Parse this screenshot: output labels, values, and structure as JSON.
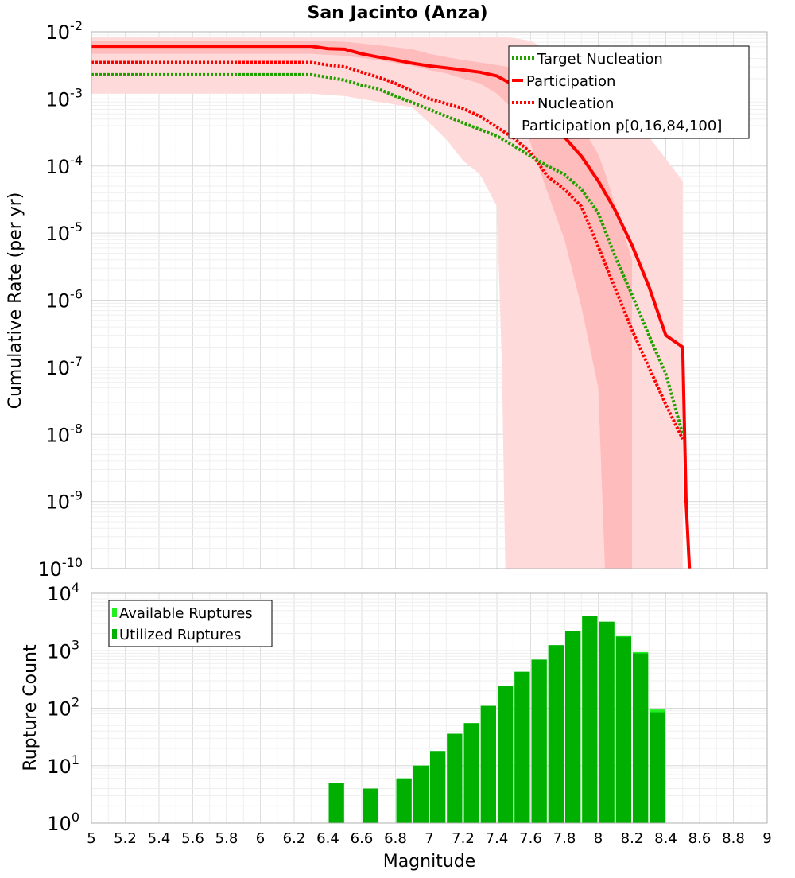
{
  "title": "San Jacinto (Anza)",
  "colors": {
    "participation": "#ff0000",
    "nucleation": "#ff0000",
    "target": "#22a000",
    "band_outer": "#ffdada",
    "band_inner": "#ffbcbc",
    "bar_available": "#22ee22",
    "bar_utilized": "#00b000"
  },
  "chart_data": [
    {
      "type": "line",
      "title": "San Jacinto (Anza)",
      "xlabel": "",
      "ylabel": "Cumulative Rate (per yr)",
      "xlim": [
        5,
        9
      ],
      "ylim": [
        1e-10,
        0.01
      ],
      "y_scale": "log",
      "grid": true,
      "legend_position": "top-right",
      "x_ticks": [
        "5",
        "5.2",
        "5.4",
        "5.6",
        "5.8",
        "6",
        "6.2",
        "6.4",
        "6.6",
        "6.8",
        "7",
        "7.2",
        "7.4",
        "7.6",
        "7.8",
        "8",
        "8.2",
        "8.4",
        "8.6",
        "8.8",
        "9"
      ],
      "y_ticks": [
        {
          "base": "10",
          "exp": "-10"
        },
        {
          "base": "10",
          "exp": "-9"
        },
        {
          "base": "10",
          "exp": "-8"
        },
        {
          "base": "10",
          "exp": "-7"
        },
        {
          "base": "10",
          "exp": "-6"
        },
        {
          "base": "10",
          "exp": "-5"
        },
        {
          "base": "10",
          "exp": "-4"
        },
        {
          "base": "10",
          "exp": "-3"
        },
        {
          "base": "10",
          "exp": "-2"
        }
      ],
      "series": [
        {
          "name": "Target Nucleation",
          "style": "dotted",
          "color": "#22a000",
          "x": [
            5.0,
            6.3,
            6.4,
            6.5,
            6.6,
            6.7,
            6.8,
            6.9,
            7.0,
            7.1,
            7.2,
            7.3,
            7.4,
            7.5,
            7.6,
            7.7,
            7.8,
            7.9,
            8.0,
            8.1,
            8.2,
            8.3,
            8.4,
            8.5
          ],
          "y": [
            0.0023,
            0.0023,
            0.0021,
            0.0019,
            0.0016,
            0.0014,
            0.0011,
            0.00088,
            0.0007,
            0.00055,
            0.00044,
            0.00035,
            0.00028,
            0.0002,
            0.00014,
            0.0001,
            7.5e-05,
            4.5e-05,
            2e-05,
            4.5e-06,
            1.2e-06,
            3e-07,
            8e-08,
            1e-08
          ]
        },
        {
          "name": "Participation",
          "style": "solid",
          "color": "#ff0000",
          "x": [
            5.0,
            6.3,
            6.4,
            6.5,
            6.6,
            6.7,
            6.8,
            6.9,
            7.0,
            7.1,
            7.2,
            7.3,
            7.4,
            7.5,
            7.6,
            7.7,
            7.8,
            7.9,
            8.0,
            8.1,
            8.2,
            8.3,
            8.4,
            8.5,
            8.52,
            8.54
          ],
          "y": [
            0.0061,
            0.0061,
            0.0056,
            0.0055,
            0.0047,
            0.0042,
            0.0038,
            0.0034,
            0.0031,
            0.0029,
            0.0027,
            0.0025,
            0.0022,
            0.0016,
            0.00092,
            0.0005,
            0.00027,
            0.00014,
            6e-05,
            2.2e-05,
            6.6e-06,
            1.6e-06,
            3e-07,
            2e-07,
            1e-09,
            1e-10
          ]
        },
        {
          "name": "Nucleation",
          "style": "dotted",
          "color": "#ff0000",
          "x": [
            5.0,
            6.3,
            6.4,
            6.5,
            6.6,
            6.7,
            6.8,
            6.9,
            7.0,
            7.1,
            7.2,
            7.3,
            7.4,
            7.5,
            7.6,
            7.7,
            7.8,
            7.9,
            8.0,
            8.1,
            8.2,
            8.3,
            8.4,
            8.5
          ],
          "y": [
            0.0035,
            0.0035,
            0.0032,
            0.003,
            0.0025,
            0.0021,
            0.0017,
            0.0013,
            0.001,
            0.00085,
            0.00072,
            0.00055,
            0.00038,
            0.00026,
            0.00016,
            7e-05,
            4.5e-05,
            2.5e-05,
            6.3e-06,
            1.5e-06,
            3.6e-07,
            1e-07,
            2.8e-08,
            8.5e-09
          ]
        }
      ],
      "bands": [
        {
          "name": "Participation p[0,16,84,100]",
          "range": "p0-p100",
          "x": [
            5.0,
            6.3,
            6.5,
            6.7,
            6.9,
            7.0,
            7.1,
            7.2,
            7.3,
            7.4,
            7.43,
            7.45,
            7.6,
            7.8,
            8.0,
            8.2,
            8.25,
            8.5
          ],
          "low": [
            0.0012,
            0.0012,
            0.0011,
            0.0009,
            0.00075,
            0.00044,
            0.00025,
            0.00012,
            7.5e-05,
            2.5e-05,
            1e-07,
            1e-10,
            1e-10,
            1e-10,
            1e-10,
            1e-10,
            1e-10,
            1e-10
          ],
          "high": [
            0.0085,
            0.0085,
            0.0085,
            0.0085,
            0.0085,
            0.0085,
            0.0085,
            0.0085,
            0.0085,
            0.0085,
            0.0085,
            0.0085,
            0.0073,
            0.004,
            0.0015,
            0.0005,
            0.0004,
            6e-05
          ]
        },
        {
          "name": "Participation p[0,16,84,100]",
          "range": "p16-p84",
          "x": [
            5.0,
            6.3,
            6.5,
            6.7,
            6.9,
            7.0,
            7.1,
            7.2,
            7.3,
            7.4,
            7.5,
            7.6,
            7.7,
            7.8,
            7.9,
            8.0,
            8.04,
            8.2
          ],
          "low": [
            0.0047,
            0.0047,
            0.0044,
            0.0038,
            0.0031,
            0.0027,
            0.0024,
            0.002,
            0.0017,
            0.0012,
            0.00068,
            0.00022,
            4e-05,
            8e-06,
            8e-07,
            5e-08,
            1e-10,
            1e-10
          ],
          "high": [
            0.0074,
            0.0074,
            0.0071,
            0.0063,
            0.0055,
            0.0047,
            0.0042,
            0.0038,
            0.0035,
            0.0032,
            0.0029,
            0.0026,
            0.0017,
            0.0009,
            0.0004,
            0.00015,
            8e-05,
            4e-06
          ]
        }
      ]
    },
    {
      "type": "bar",
      "xlabel": "Magnitude",
      "ylabel": "Rupture Count",
      "xlim": [
        5,
        9
      ],
      "ylim": [
        1,
        10000
      ],
      "y_scale": "log",
      "grid": true,
      "legend_position": "top-left",
      "x_ticks": [
        "5",
        "5.2",
        "5.4",
        "5.6",
        "5.8",
        "6",
        "6.2",
        "6.4",
        "6.6",
        "6.8",
        "7",
        "7.2",
        "7.4",
        "7.6",
        "7.8",
        "8",
        "8.2",
        "8.4",
        "8.6",
        "8.8",
        "9"
      ],
      "y_ticks": [
        {
          "base": "10",
          "exp": "0"
        },
        {
          "base": "10",
          "exp": "1"
        },
        {
          "base": "10",
          "exp": "2"
        },
        {
          "base": "10",
          "exp": "3"
        },
        {
          "base": "10",
          "exp": "4"
        }
      ],
      "x": [
        6.45,
        6.65,
        6.75,
        6.85,
        6.95,
        7.05,
        7.15,
        7.25,
        7.35,
        7.45,
        7.55,
        7.65,
        7.75,
        7.85,
        7.95,
        8.05,
        8.15,
        8.25,
        8.35
      ],
      "series": [
        {
          "name": "Available Ruptures",
          "color": "#22ee22",
          "values": [
            5,
            4,
            1,
            6,
            10,
            18,
            36,
            55,
            110,
            240,
            430,
            700,
            1250,
            2200,
            4000,
            3200,
            1800,
            950,
            95
          ]
        },
        {
          "name": "Utilized Ruptures",
          "color": "#00b000",
          "values": [
            5,
            4,
            1,
            6,
            10,
            18,
            36,
            55,
            110,
            240,
            430,
            700,
            1250,
            2200,
            4000,
            3200,
            1750,
            900,
            85
          ]
        }
      ]
    }
  ]
}
